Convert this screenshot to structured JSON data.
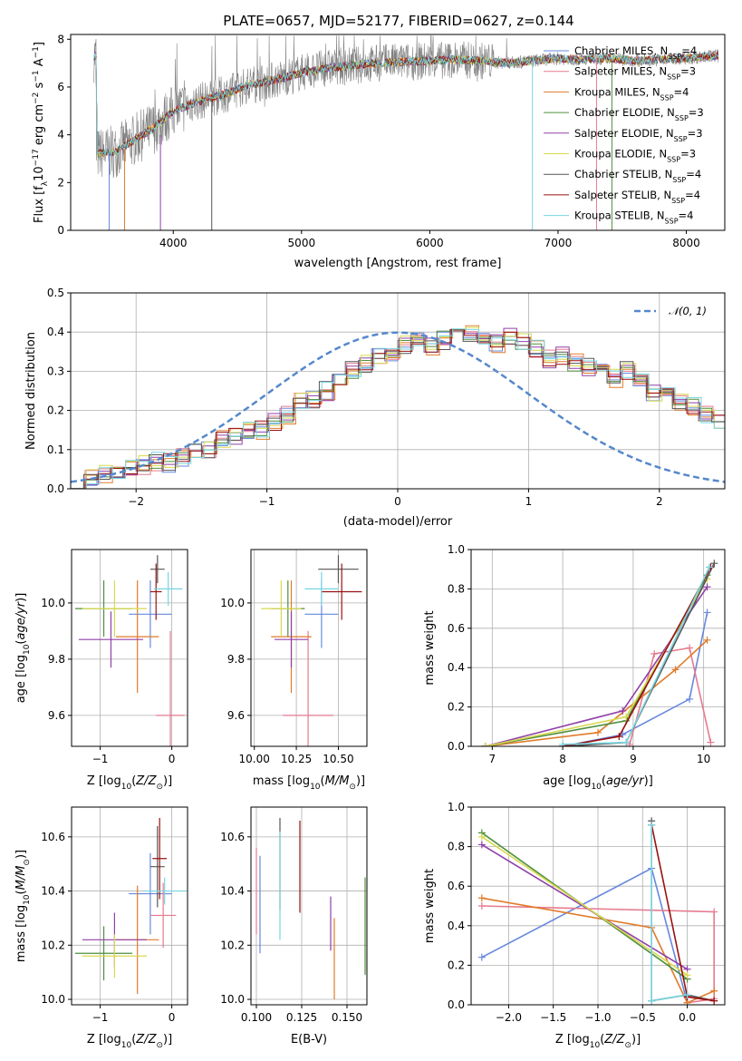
{
  "figure": {
    "title": "PLATE=0657, MJD=52177, FIBERID=0627, z=0.144"
  },
  "series_colors": [
    "#6688dd",
    "#e67a8f",
    "#e07b2a",
    "#4f8f3f",
    "#9040a8",
    "#d7d94f",
    "#555555",
    "#991111",
    "#77d5e0"
  ],
  "chart_data": [
    {
      "id": "spectrum",
      "type": "line",
      "title": "PLATE=0657, MJD=52177, FIBERID=0627, z=0.144",
      "xlabel": "wavelength [Angstrom, rest frame]",
      "ylabel": "Flux [f_λ 10^-17 erg cm^-2 s^-1 A^-1]",
      "xlim": [
        3200,
        8300
      ],
      "ylim": [
        0,
        8.2
      ],
      "xticks": [
        "4000",
        "5000",
        "6000",
        "7000",
        "8000"
      ],
      "yticks": [
        "0",
        "2",
        "4",
        "6",
        "8"
      ],
      "grid": false,
      "legend_position": "top-right",
      "legend": [
        "Chabrier MILES, N_SSP=4",
        "Salpeter MILES, N_SSP=3",
        "Kroupa MILES, N_SSP=4",
        "Chabrier ELODIE, N_SSP=3",
        "Salpeter ELODIE, N_SSP=3",
        "Kroupa ELODIE, N_SSP=3",
        "Chabrier STELIB, N_SSP=4",
        "Salpeter STELIB, N_SSP=4",
        "Kroupa STELIB, N_SSP=4"
      ],
      "observed_trend": {
        "x": [
          3400,
          3550,
          3700,
          3850,
          4000,
          4200,
          4400,
          4600,
          4800,
          5000,
          5200,
          5400,
          5600,
          5800,
          6000,
          6200,
          6400,
          6600,
          6800,
          7000,
          7200,
          7400,
          7600,
          7800,
          8000,
          8200
        ],
        "y": [
          3.2,
          3.3,
          3.8,
          4.3,
          5.0,
          5.4,
          5.7,
          6.1,
          6.3,
          6.6,
          6.8,
          6.9,
          7.0,
          7.05,
          7.1,
          7.15,
          7.1,
          7.0,
          7.1,
          7.2,
          7.15,
          7.2,
          7.1,
          7.15,
          7.2,
          7.3
        ]
      },
      "glitch_lines": [
        {
          "x": 3500,
          "y": [
            0,
            3.2
          ]
        },
        {
          "x": 3620,
          "y": [
            0,
            3.4
          ]
        },
        {
          "x": 3900,
          "y": [
            0,
            4.0
          ]
        },
        {
          "x": 4300,
          "y": [
            0,
            5.5
          ]
        },
        {
          "x": 6800,
          "y": [
            0,
            7.0
          ]
        },
        {
          "x": 7300,
          "y": [
            0,
            7.2
          ]
        },
        {
          "x": 7420,
          "y": [
            0,
            7.1
          ]
        }
      ]
    },
    {
      "id": "residuals",
      "type": "histogram",
      "xlabel": "(data-model)/error",
      "ylabel": "Normed distribution",
      "xlim": [
        -2.5,
        2.5
      ],
      "ylim": [
        0,
        0.5
      ],
      "xticks": [
        "−2",
        "−1",
        "0",
        "1",
        "2"
      ],
      "yticks": [
        "0.0",
        "0.1",
        "0.2",
        "0.3",
        "0.4",
        "0.5"
      ],
      "grid": true,
      "legend_position": "top-right",
      "legend": [
        "𝒩(0, 1)"
      ],
      "bin_width": 0.1,
      "bin_start": -2.5,
      "mean_counts": [
        0.025,
        0.03,
        0.04,
        0.045,
        0.05,
        0.06,
        0.07,
        0.065,
        0.08,
        0.09,
        0.1,
        0.13,
        0.13,
        0.15,
        0.15,
        0.17,
        0.19,
        0.22,
        0.23,
        0.25,
        0.27,
        0.3,
        0.32,
        0.34,
        0.34,
        0.37,
        0.38,
        0.36,
        0.38,
        0.39,
        0.4,
        0.39,
        0.37,
        0.39,
        0.38,
        0.36,
        0.33,
        0.34,
        0.32,
        0.31,
        0.31,
        0.28,
        0.3,
        0.27,
        0.24,
        0.25,
        0.22,
        0.21,
        0.19,
        0.17,
        0.16,
        0.15,
        0.14,
        0.12,
        0.1,
        0.09,
        0.085,
        0.075,
        0.07,
        0.055,
        0.05,
        0.05,
        0.045,
        0.035,
        0.035,
        0.03,
        0.03,
        0.025,
        0.025,
        0.02,
        0.02,
        0.02,
        0.02,
        0.02,
        0.02,
        0.02,
        0.02,
        0.02,
        0.02,
        0.02,
        0.02
      ]
    },
    {
      "id": "age_vs_Z",
      "type": "scatter",
      "xlabel": "Z [log10(Z/Z⊙)]",
      "ylabel": "age  [log10(age/yr)]",
      "xlim": [
        -1.4,
        0.22
      ],
      "ylim": [
        9.49,
        10.19
      ],
      "xticks": [
        "−1",
        "0"
      ],
      "yticks": [
        "9.6",
        "9.8",
        "10.0"
      ],
      "grid": true,
      "points": [
        {
          "x": -0.3,
          "y": 9.96,
          "xerr": 0.3,
          "yerr": 0.12
        },
        {
          "x": -0.02,
          "y": 9.6,
          "xerr": 0.2,
          "yerr": 0.3
        },
        {
          "x": -0.48,
          "y": 9.88,
          "xerr": 0.3,
          "yerr": 0.2
        },
        {
          "x": -0.95,
          "y": 9.98,
          "xerr": 0.4,
          "yerr": 0.1
        },
        {
          "x": -0.85,
          "y": 9.87,
          "xerr": 0.45,
          "yerr": 0.1
        },
        {
          "x": -0.8,
          "y": 9.98,
          "xerr": 0.45,
          "yerr": 0.1
        },
        {
          "x": -0.2,
          "y": 10.12,
          "xerr": 0.1,
          "yerr": 0.05
        },
        {
          "x": -0.22,
          "y": 10.04,
          "xerr": 0.08,
          "yerr": 0.1
        },
        {
          "x": -0.05,
          "y": 10.05,
          "xerr": 0.2,
          "yerr": 0.06
        }
      ]
    },
    {
      "id": "age_vs_mass",
      "type": "scatter",
      "xlabel": "mass [log10(M/M⊙)]",
      "ylabel": "",
      "xlim": [
        9.98,
        10.67
      ],
      "ylim": [
        9.49,
        10.19
      ],
      "xticks": [
        "10.00",
        "10.25",
        "10.50"
      ],
      "yticks": [
        "9.6",
        "9.8",
        "10.0"
      ],
      "grid": true,
      "points": [
        {
          "x": 10.4,
          "y": 9.96,
          "xerr": 0.1,
          "yerr": 0.12
        },
        {
          "x": 10.32,
          "y": 9.6,
          "xerr": 0.15,
          "yerr": 0.3
        },
        {
          "x": 10.22,
          "y": 9.88,
          "xerr": 0.12,
          "yerr": 0.2
        },
        {
          "x": 10.2,
          "y": 9.98,
          "xerr": 0.1,
          "yerr": 0.1
        },
        {
          "x": 10.22,
          "y": 9.87,
          "xerr": 0.1,
          "yerr": 0.1
        },
        {
          "x": 10.16,
          "y": 9.98,
          "xerr": 0.12,
          "yerr": 0.1
        },
        {
          "x": 10.5,
          "y": 10.12,
          "xerr": 0.12,
          "yerr": 0.05
        },
        {
          "x": 10.52,
          "y": 10.04,
          "xerr": 0.12,
          "yerr": 0.1
        },
        {
          "x": 10.4,
          "y": 10.05,
          "xerr": 0.1,
          "yerr": 0.06
        }
      ]
    },
    {
      "id": "weight_vs_age",
      "type": "line",
      "xlabel": "age  [log10(age/yr)]",
      "ylabel": "mass weight",
      "xlim": [
        6.7,
        10.3
      ],
      "ylim": [
        0,
        1.0
      ],
      "xticks": [
        "7",
        "8",
        "9",
        "10"
      ],
      "yticks": [
        "0.0",
        "0.2",
        "0.4",
        "0.6",
        "0.8",
        "1.0"
      ],
      "grid": true,
      "series": [
        {
          "x": [
            8.0,
            8.85,
            9.8,
            10.05
          ],
          "y": [
            0.0,
            0.06,
            0.24,
            0.68
          ]
        },
        {
          "x": [
            8.95,
            9.3,
            9.8,
            10.1
          ],
          "y": [
            0.01,
            0.47,
            0.5,
            0.02
          ]
        },
        {
          "x": [
            6.9,
            8.5,
            9.6,
            10.05
          ],
          "y": [
            0.0,
            0.07,
            0.39,
            0.54
          ]
        },
        {
          "x": [
            6.9,
            8.9,
            10.05
          ],
          "y": [
            0.0,
            0.13,
            0.87
          ]
        },
        {
          "x": [
            6.9,
            8.85,
            10.05
          ],
          "y": [
            0.0,
            0.18,
            0.81
          ]
        },
        {
          "x": [
            6.9,
            8.9,
            10.05
          ],
          "y": [
            0.0,
            0.15,
            0.85
          ]
        },
        {
          "x": [
            8.0,
            8.9,
            10.15
          ],
          "y": [
            0.0,
            0.02,
            0.93
          ]
        },
        {
          "x": [
            8.0,
            8.8,
            10.1
          ],
          "y": [
            0.0,
            0.05,
            0.91
          ]
        },
        {
          "x": [
            8.0,
            8.9,
            10.08
          ],
          "y": [
            0.01,
            0.02,
            0.91
          ]
        }
      ]
    },
    {
      "id": "mass_vs_Z",
      "type": "scatter",
      "xlabel": "Z [log10(Z/Z⊙)]",
      "ylabel": "mass [log10(M/M⊙)]",
      "xlim": [
        -1.4,
        0.22
      ],
      "ylim": [
        9.98,
        10.71
      ],
      "xticks": [
        "−1",
        "0"
      ],
      "yticks": [
        "10.0",
        "10.2",
        "10.4",
        "10.6"
      ],
      "grid": true,
      "points": [
        {
          "x": -0.3,
          "y": 10.39,
          "xerr": 0.3,
          "yerr": 0.15
        },
        {
          "x": -0.12,
          "y": 10.31,
          "xerr": 0.18,
          "yerr": 0.12
        },
        {
          "x": -0.48,
          "y": 10.22,
          "xerr": 0.3,
          "yerr": 0.2
        },
        {
          "x": -0.95,
          "y": 10.17,
          "xerr": 0.4,
          "yerr": 0.1
        },
        {
          "x": -0.8,
          "y": 10.22,
          "xerr": 0.45,
          "yerr": 0.1
        },
        {
          "x": -0.8,
          "y": 10.16,
          "xerr": 0.45,
          "yerr": 0.08
        },
        {
          "x": -0.2,
          "y": 10.49,
          "xerr": 0.1,
          "yerr": 0.15
        },
        {
          "x": -0.17,
          "y": 10.52,
          "xerr": 0.1,
          "yerr": 0.15
        },
        {
          "x": -0.1,
          "y": 10.4,
          "xerr": 0.3,
          "yerr": 0.05
        }
      ]
    },
    {
      "id": "mass_vs_ebv",
      "type": "scatter",
      "xlabel": "E(B-V)",
      "ylabel": "",
      "xlim": [
        0.097,
        0.161
      ],
      "ylim": [
        9.98,
        10.71
      ],
      "xticks": [
        "0.100",
        "0.125",
        "0.150"
      ],
      "yticks": [
        "10.0",
        "10.2",
        "10.4",
        "10.6"
      ],
      "grid": true,
      "points": [
        {
          "x": 0.102,
          "y": 10.35,
          "xerr": 0,
          "yerr": 0.18
        },
        {
          "x": 0.1,
          "y": 10.4,
          "xerr": 0,
          "yerr": 0.16
        },
        {
          "x": 0.143,
          "y": 10.15,
          "xerr": 0,
          "yerr": 0.15
        },
        {
          "x": 0.16,
          "y": 10.27,
          "xerr": 0,
          "yerr": 0.18
        },
        {
          "x": 0.141,
          "y": 10.28,
          "xerr": 0,
          "yerr": 0.1
        },
        {
          "x": 0.161,
          "y": 10.25,
          "xerr": 0,
          "yerr": 0.15
        },
        {
          "x": 0.113,
          "y": 10.5,
          "xerr": 0,
          "yerr": 0.17
        },
        {
          "x": 0.124,
          "y": 10.49,
          "xerr": 0,
          "yerr": 0.17
        },
        {
          "x": 0.113,
          "y": 10.42,
          "xerr": 0,
          "yerr": 0.2
        }
      ]
    },
    {
      "id": "weight_vs_Z",
      "type": "line",
      "xlabel": "Z [log10(Z/Z⊙)]",
      "ylabel": "mass weight",
      "xlim": [
        -2.42,
        0.42
      ],
      "ylim": [
        0,
        1.0
      ],
      "xticks": [
        "−2.0",
        "−1.5",
        "−1.0",
        "−0.5",
        "0.0"
      ],
      "yticks": [
        "0.0",
        "0.2",
        "0.4",
        "0.6",
        "0.8",
        "1.0"
      ],
      "grid": true,
      "series": [
        {
          "x": [
            -2.3,
            -0.4,
            0.0
          ],
          "y": [
            0.24,
            0.69,
            0.01
          ]
        },
        {
          "x": [
            -2.3,
            0.3,
            0.3,
            0.0
          ],
          "y": [
            0.5,
            0.47,
            0.03,
            0.01
          ]
        },
        {
          "x": [
            -2.3,
            -0.4,
            0.0,
            0.3
          ],
          "y": [
            0.54,
            0.39,
            0.01,
            0.07
          ]
        },
        {
          "x": [
            -2.3,
            0.0
          ],
          "y": [
            0.87,
            0.13
          ]
        },
        {
          "x": [
            -2.3,
            0.0
          ],
          "y": [
            0.81,
            0.18
          ]
        },
        {
          "x": [
            -2.3,
            0.0
          ],
          "y": [
            0.85,
            0.15
          ]
        },
        {
          "x": [
            -0.4,
            -0.4,
            0.0,
            0.3
          ],
          "y": [
            0.93,
            0.02,
            0.05,
            0.02
          ]
        },
        {
          "x": [
            -0.4,
            0.0,
            0.3
          ],
          "y": [
            0.91,
            0.04,
            0.02
          ]
        },
        {
          "x": [
            -0.4,
            -0.4,
            0.0
          ],
          "y": [
            0.91,
            0.02,
            0.05
          ]
        }
      ]
    }
  ]
}
